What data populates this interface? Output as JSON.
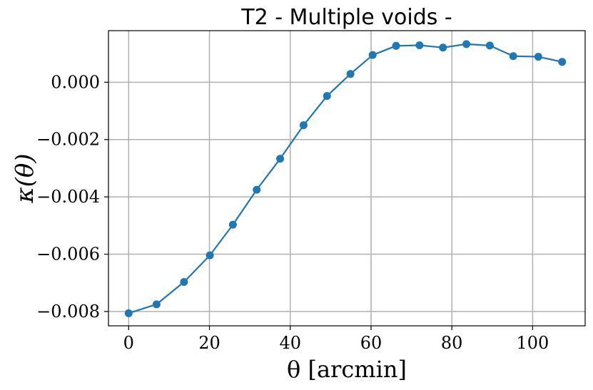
{
  "chart_data": {
    "type": "line",
    "title": "T2 - Multiple voids -",
    "xlabel": "θ [arcmin]",
    "ylabel": "κ(θ)",
    "xlim": [
      -5,
      113
    ],
    "ylim": [
      -0.0085,
      0.0018
    ],
    "grid": true,
    "legend": "none",
    "x_ticks": [
      0,
      20,
      40,
      60,
      80,
      100
    ],
    "x_tick_labels": [
      "0",
      "20",
      "40",
      "60",
      "80",
      "100"
    ],
    "y_ticks": [
      -0.008,
      -0.006,
      -0.004,
      -0.002,
      0.0
    ],
    "y_tick_labels": [
      "−0.008",
      "−0.006",
      "−0.004",
      "−0.002",
      "0.000"
    ],
    "series": [
      {
        "color": "#1f77b4",
        "marker": "circle",
        "x": [
          0,
          6.9,
          13.7,
          20.1,
          25.8,
          31.7,
          37.5,
          43.3,
          49.1,
          54.9,
          60.4,
          66.2,
          72.0,
          77.8,
          83.6,
          89.4,
          95.2,
          101.4,
          107.3
        ],
        "y": [
          -0.00806,
          -0.00775,
          -0.00697,
          -0.00604,
          -0.00497,
          -0.00375,
          -0.00267,
          -0.0015,
          -0.00048,
          0.00029,
          0.00095,
          0.00127,
          0.00129,
          0.00121,
          0.00133,
          0.00128,
          0.00091,
          0.00089,
          0.00071
        ]
      }
    ]
  }
}
